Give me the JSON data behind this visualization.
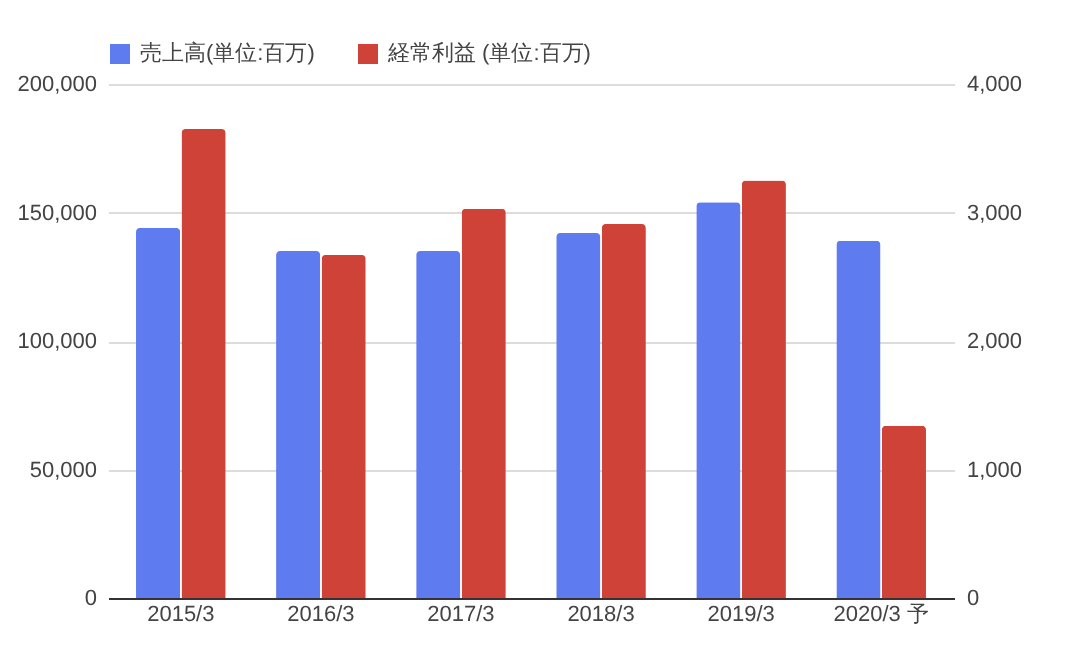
{
  "chart_data": {
    "type": "bar",
    "categories": [
      "2015/3",
      "2016/3",
      "2017/3",
      "2018/3",
      "2019/3",
      "2020/3 予"
    ],
    "series": [
      {
        "name": "売上高(単位:百万)",
        "color": "#5f7bf0",
        "values": [
          144000,
          135000,
          135000,
          142000,
          154000,
          139000
        ]
      },
      {
        "name": "経常利益 (単位:百万)",
        "color": "#cf4238",
        "axis": "y2",
        "values": [
          3650,
          2670,
          3030,
          2910,
          3250,
          1340
        ]
      }
    ],
    "ylim": [
      0,
      200000
    ],
    "yticks": [
      0,
      {
        "value": 50000,
        "label": "50,000"
      },
      {
        "value": 100000,
        "label": "100,000"
      },
      {
        "value": 150000,
        "label": "150,000"
      },
      {
        "value": 200000,
        "label": "200,000"
      }
    ],
    "y2lim": [
      0,
      4000
    ],
    "y2ticks": [
      0,
      {
        "value": 1000,
        "label": "1,000"
      },
      {
        "value": 2000,
        "label": "2,000"
      },
      {
        "value": 3000,
        "label": "3,000"
      },
      {
        "value": 4000,
        "label": "4,000"
      }
    ],
    "grid": "y",
    "legend": "top"
  }
}
